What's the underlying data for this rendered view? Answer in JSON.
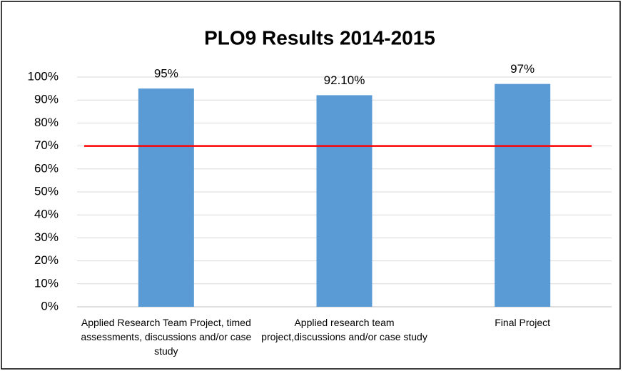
{
  "chart_data": {
    "type": "bar",
    "title": "PLO9 Results 2014-2015",
    "categories": [
      "Applied Research Team Project, timed assessments, discussions and/or case study",
      "Applied research team project,discussions and/or case study",
      "Final Project"
    ],
    "values": [
      95,
      92.1,
      97
    ],
    "value_labels": [
      "95%",
      "92.10%",
      "97%"
    ],
    "color": "#5b9bd5",
    "reference_line": {
      "value": 70,
      "color": "#ff0000"
    },
    "ylim": [
      0,
      100
    ],
    "yticks": [
      {
        "value": 0,
        "label": "0%"
      },
      {
        "value": 10,
        "label": "10%"
      },
      {
        "value": 20,
        "label": "20%"
      },
      {
        "value": 30,
        "label": "30%"
      },
      {
        "value": 40,
        "label": "40%"
      },
      {
        "value": 50,
        "label": "50%"
      },
      {
        "value": 60,
        "label": "60%"
      },
      {
        "value": 70,
        "label": "70%"
      },
      {
        "value": 80,
        "label": "80%"
      },
      {
        "value": 90,
        "label": "90%"
      },
      {
        "value": 100,
        "label": "100%"
      }
    ],
    "grid": true
  }
}
